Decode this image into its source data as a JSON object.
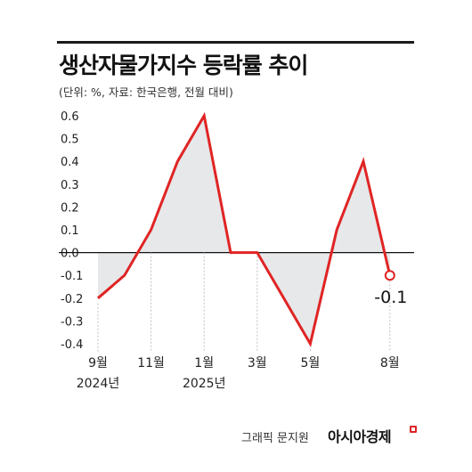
{
  "header": {
    "title": "생산자물가지수 등락률 추이",
    "subtitle": "(단위: %, 자료: 한국은행, 전월 대비)"
  },
  "footer": {
    "credit": "그래픽 문지원",
    "brand": "아시아경제"
  },
  "colors": {
    "line": "#e02424",
    "fill": "#e6e8ea",
    "axis": "#111111",
    "grid_dot": "#bfbfbf"
  },
  "chart_data": {
    "type": "line",
    "title": "생산자물가지수 등락률 추이",
    "unit": "%",
    "x": [
      "2024-09",
      "2024-10",
      "2024-11",
      "2024-12",
      "2025-01",
      "2025-02",
      "2025-03",
      "2025-04",
      "2025-05",
      "2025-06",
      "2025-07",
      "2025-08"
    ],
    "values": [
      -0.2,
      -0.1,
      0.1,
      0.4,
      0.6,
      0.0,
      0.0,
      -0.2,
      -0.4,
      0.1,
      0.4,
      -0.1
    ],
    "x_tick_labels": [
      {
        "index": 0,
        "month": "9월",
        "year": "2024년"
      },
      {
        "index": 2,
        "month": "11월",
        "year": ""
      },
      {
        "index": 4,
        "month": "1월",
        "year": "2025년"
      },
      {
        "index": 6,
        "month": "3월",
        "year": ""
      },
      {
        "index": 8,
        "month": "5월",
        "year": ""
      },
      {
        "index": 11,
        "month": "8월",
        "year": ""
      }
    ],
    "y_ticks": [
      "0.6",
      "0.5",
      "0.4",
      "0.3",
      "0.2",
      "0.1",
      "0.0",
      "-0.1",
      "-0.2",
      "-0.3",
      "-0.4"
    ],
    "ylim": [
      -0.4,
      0.6
    ],
    "last_point_label": "-0.1",
    "fill_to_zero": true
  }
}
